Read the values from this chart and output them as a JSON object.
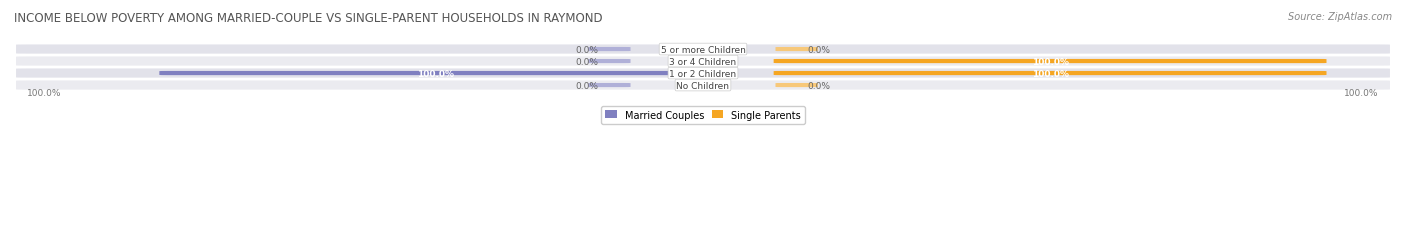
{
  "title": "INCOME BELOW POVERTY AMONG MARRIED-COUPLE VS SINGLE-PARENT HOUSEHOLDS IN RAYMOND",
  "source": "Source: ZipAtlas.com",
  "categories": [
    "No Children",
    "1 or 2 Children",
    "3 or 4 Children",
    "5 or more Children"
  ],
  "married_values": [
    0.0,
    100.0,
    0.0,
    0.0
  ],
  "single_values": [
    0.0,
    100.0,
    100.0,
    0.0
  ],
  "married_color": "#8080c0",
  "married_color_light": "#b0b0d8",
  "single_color": "#f5a623",
  "single_color_light": "#f7c87a",
  "bar_bg_color": "#e8e8ee",
  "row_bg_colors": [
    "#ebebf0",
    "#e2e2ea"
  ],
  "title_color": "#555555",
  "label_color": "#666666",
  "source_color": "#888888",
  "axis_label_color": "#777777",
  "max_value": 100.0,
  "figsize": [
    14.06,
    2.32
  ],
  "dpi": 100
}
